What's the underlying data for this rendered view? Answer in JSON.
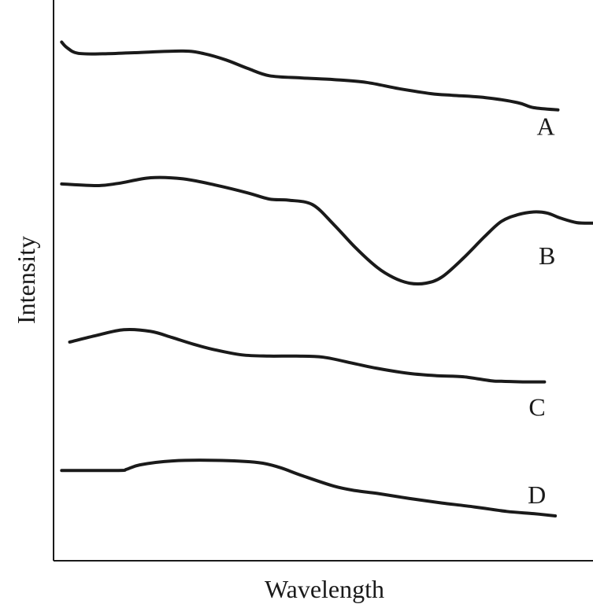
{
  "chart_data": {
    "type": "line",
    "title": "",
    "xlabel": "Wavelength",
    "ylabel": "Intensity",
    "xlim": [
      0,
      100
    ],
    "ylim": [
      0,
      100
    ],
    "grid": false,
    "ticks": "none",
    "series": [
      {
        "name": "A",
        "x": [
          1.5,
          2.5,
          4.5,
          9,
          15,
          24,
          28,
          32,
          36,
          40,
          46,
          52,
          58,
          64,
          70,
          74,
          80,
          86,
          89,
          93.5
        ],
        "y": [
          92.5,
          91.5,
          90.5,
          90.4,
          90.6,
          90.9,
          90.4,
          89.3,
          87.8,
          86.5,
          86.1,
          85.8,
          85.3,
          84.2,
          83.3,
          83.0,
          82.6,
          81.7,
          80.8,
          80.4
        ]
      },
      {
        "name": "B",
        "x": [
          1.5,
          8,
          12,
          18,
          24,
          30,
          36,
          40,
          43.5,
          48,
          52,
          56,
          60,
          63,
          66,
          69,
          72,
          76,
          80,
          83,
          86,
          89,
          91.5,
          94,
          97,
          100
        ],
        "y": [
          67.2,
          66.9,
          67.3,
          68.3,
          68.1,
          67.0,
          65.6,
          64.5,
          64.3,
          63.5,
          59.9,
          55.8,
          52.3,
          50.5,
          49.5,
          49.5,
          50.6,
          54.0,
          57.9,
          60.5,
          61.7,
          62.2,
          62.0,
          61.1,
          60.3,
          60.2
        ]
      },
      {
        "name": "C",
        "x": [
          3,
          8,
          13,
          18,
          22,
          26,
          30,
          35,
          40,
          45,
          50,
          56,
          60,
          66,
          71,
          76,
          81,
          83,
          87,
          91
        ],
        "y": [
          39.0,
          40.2,
          41.2,
          40.9,
          39.8,
          38.6,
          37.6,
          36.7,
          36.5,
          36.5,
          36.3,
          35.1,
          34.3,
          33.4,
          33.0,
          32.8,
          32.1,
          32.0,
          31.9,
          31.9
        ]
      },
      {
        "name": "D",
        "x": [
          1.5,
          12,
          13.5,
          16,
          22,
          30,
          38,
          42,
          46,
          52,
          56,
          60,
          66,
          72,
          78,
          84,
          89,
          93
        ],
        "y": [
          16.1,
          16.1,
          16.3,
          17.1,
          17.8,
          17.9,
          17.5,
          16.6,
          15.2,
          13.3,
          12.5,
          12.0,
          11.1,
          10.3,
          9.6,
          8.8,
          8.4,
          8.0
        ]
      }
    ],
    "annotations": [
      {
        "text": "A",
        "series": "A"
      },
      {
        "text": "B",
        "series": "B"
      },
      {
        "text": "C",
        "series": "C"
      },
      {
        "text": "D",
        "series": "D"
      }
    ]
  }
}
